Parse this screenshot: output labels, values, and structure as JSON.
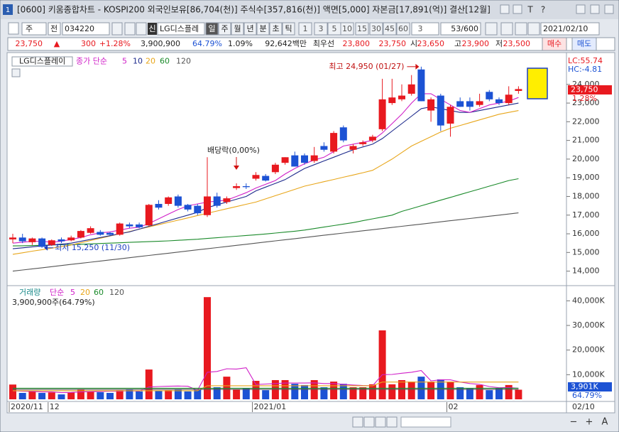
{
  "window": {
    "badge": "1",
    "title": "[0600] 키움종합차트 - KOSPI200 외국인보유[86,704(천)] 주식수[357,816(천)] 액면[5,000] 자본금[17,891(억)] 결산[12월]",
    "icons": [
      "T",
      "?"
    ]
  },
  "toolbar": {
    "market": "주",
    "range": "전",
    "code": "034220",
    "badge": "신",
    "name": "LG디스플레",
    "periods": [
      "일",
      "주",
      "월",
      "년",
      "분",
      "초",
      "틱"
    ],
    "intervals": [
      "1",
      "3",
      "5",
      "10",
      "15",
      "30",
      "45",
      "60"
    ],
    "multiplier": "3",
    "count": "53/600",
    "date": "2021/02/10"
  },
  "quote": {
    "price": "23,750",
    "arrow": "▲",
    "change": "300",
    "change_pct": "+1.28%",
    "volume": "3,900,900",
    "volume_ratio": "64.79%",
    "turnover": "1.09%",
    "amount": "92,642백만",
    "best_label": "최우선",
    "ask": "23,800",
    "bid": "23,750",
    "open_label": "시",
    "open": "23,650",
    "high_label": "고",
    "high": "23,900",
    "low_label": "저",
    "low": "23,500",
    "buy": "매수",
    "sell": "매도"
  },
  "scroll": {
    "minus": "−",
    "plus": "+",
    "auto": "A"
  },
  "chart_data": [
    {
      "type": "candlestick",
      "title": "LG디스플레이",
      "legend_prefix": "종가 단순",
      "up_color": "#e8191f",
      "down_color": "#1c52d4",
      "open": [
        15700,
        15800,
        15550,
        15750,
        15400,
        15700,
        15650,
        15800,
        16050,
        16100,
        16050,
        15950,
        16500,
        16500,
        16450,
        17600,
        17600,
        18000,
        17550,
        17500,
        17000,
        18000,
        17700,
        18450,
        18550,
        18950,
        19100,
        19300,
        19800,
        20200,
        20200,
        19900,
        20700,
        20400,
        21700,
        20500,
        20800,
        21000,
        21600,
        23000,
        23200,
        23500,
        24800,
        22600,
        23400,
        21900,
        23100,
        23100,
        22900,
        23600,
        23200,
        23000,
        23650
      ],
      "high": [
        16000,
        16000,
        15800,
        15800,
        15700,
        15800,
        15900,
        16200,
        16400,
        16200,
        16100,
        16600,
        16600,
        16600,
        17600,
        17800,
        18000,
        18100,
        17600,
        17600,
        20100,
        18200,
        18000,
        18700,
        18700,
        19300,
        19200,
        19800,
        20100,
        20400,
        20300,
        20650,
        20900,
        21500,
        21800,
        20800,
        21000,
        21300,
        24300,
        24300,
        24000,
        24500,
        24950,
        23300,
        23500,
        22900,
        23300,
        23300,
        23500,
        23700,
        23300,
        23900,
        23900
      ],
      "low": [
        15500,
        15500,
        15400,
        15250,
        15350,
        15500,
        15600,
        15750,
        16000,
        15900,
        15900,
        15900,
        16300,
        16300,
        16400,
        17300,
        17500,
        17400,
        17200,
        17000,
        16900,
        17400,
        17600,
        18350,
        18400,
        18850,
        18800,
        19200,
        19700,
        19600,
        19700,
        19800,
        20400,
        20300,
        20900,
        20300,
        20700,
        20900,
        21500,
        22900,
        23100,
        23400,
        23100,
        22000,
        21500,
        21200,
        22800,
        22600,
        22800,
        23100,
        22900,
        22900,
        23500
      ],
      "close": [
        15800,
        15600,
        15750,
        15300,
        15650,
        15600,
        15800,
        16150,
        16300,
        15950,
        15950,
        16550,
        16400,
        16350,
        17550,
        17400,
        17950,
        17500,
        17300,
        17100,
        18000,
        17500,
        17900,
        18550,
        18500,
        19150,
        18850,
        19700,
        20100,
        19600,
        19800,
        20200,
        20500,
        21400,
        21000,
        20700,
        20900,
        21200,
        23200,
        23300,
        23400,
        24000,
        23100,
        23200,
        21800,
        22800,
        22800,
        22800,
        23100,
        23200,
        23000,
        23450,
        23750
      ],
      "series": [
        {
          "name": "5",
          "color": "#d020c8",
          "values": [
            15500,
            15550,
            15600,
            15600,
            15550,
            15600,
            15700,
            15800,
            15950,
            16050,
            16100,
            16200,
            16300,
            16350,
            16550,
            16800,
            17050,
            17300,
            17500,
            17600,
            17700,
            17750,
            17800,
            18000,
            18200,
            18450,
            18650,
            18850,
            19200,
            19500,
            19750,
            19950,
            20100,
            20400,
            20700,
            20800,
            20900,
            21000,
            21400,
            21900,
            22400,
            23000,
            23500,
            23500,
            23200,
            22900,
            22600,
            22500,
            22700,
            22900,
            23000,
            23100,
            23300
          ]
        },
        {
          "name": "10",
          "color": "#1d2a8c",
          "values": [
            15200,
            15250,
            15300,
            15350,
            15400,
            15450,
            15500,
            15600,
            15700,
            15800,
            15900,
            16000,
            16100,
            16250,
            16400,
            16550,
            16700,
            16850,
            17000,
            17150,
            17400,
            17550,
            17700,
            17850,
            18000,
            18300,
            18500,
            18700,
            18900,
            19200,
            19500,
            19700,
            19900,
            20100,
            20300,
            20500,
            20650,
            20800,
            21100,
            21500,
            21900,
            22300,
            22700,
            22800,
            22700,
            22600,
            22500,
            22500,
            22600,
            22700,
            22800,
            22900,
            23000
          ]
        },
        {
          "name": "20",
          "color": "#e8a61a",
          "values": [
            14900,
            14980,
            15070,
            15150,
            15230,
            15320,
            15400,
            15520,
            15640,
            15760,
            15880,
            16000,
            16120,
            16250,
            16370,
            16490,
            16610,
            16730,
            16850,
            16980,
            17100,
            17220,
            17340,
            17460,
            17580,
            17700,
            17870,
            18040,
            18210,
            18380,
            18550,
            18670,
            18790,
            18910,
            19030,
            19150,
            19270,
            19400,
            19700,
            20000,
            20350,
            20700,
            20950,
            21200,
            21450,
            21650,
            21800,
            21950,
            22100,
            22250,
            22400,
            22500,
            22600
          ]
        },
        {
          "name": "60",
          "color": "#1a8a2a",
          "values": [
            15350,
            15360,
            15370,
            15380,
            15400,
            15410,
            15420,
            15440,
            15460,
            15480,
            15500,
            15520,
            15540,
            15560,
            15580,
            15600,
            15620,
            15650,
            15680,
            15710,
            15750,
            15790,
            15830,
            15870,
            15910,
            15950,
            15990,
            16040,
            16090,
            16140,
            16200,
            16280,
            16360,
            16440,
            16520,
            16600,
            16700,
            16800,
            16900,
            17000,
            17200,
            17350,
            17500,
            17650,
            17800,
            17950,
            18100,
            18250,
            18400,
            18550,
            18700,
            18850,
            18950
          ]
        },
        {
          "name": "120",
          "color": "#555555",
          "values": [
            14000,
            14060,
            14120,
            14180,
            14240,
            14300,
            14360,
            14420,
            14480,
            14540,
            14600,
            14660,
            14720,
            14780,
            14840,
            14900,
            14960,
            15020,
            15080,
            15140,
            15200,
            15260,
            15320,
            15380,
            15440,
            15500,
            15560,
            15620,
            15680,
            15740,
            15800,
            15860,
            15920,
            15980,
            16040,
            16100,
            16160,
            16220,
            16280,
            16340,
            16400,
            16460,
            16520,
            16580,
            16640,
            16700,
            16760,
            16820,
            16880,
            16940,
            17000,
            17060,
            17120
          ]
        }
      ],
      "ylim": [
        13300,
        25000
      ],
      "yticks": [
        {
          "value": 14000,
          "label": "14,000"
        },
        {
          "value": 15000,
          "label": "15,000"
        },
        {
          "value": 16000,
          "label": "16,000"
        },
        {
          "value": 17000,
          "label": "17,000"
        },
        {
          "value": 18000,
          "label": "18,000"
        },
        {
          "value": 19000,
          "label": "19,000"
        },
        {
          "value": 20000,
          "label": "20,000"
        },
        {
          "value": 21000,
          "label": "21,000"
        },
        {
          "value": 22000,
          "label": "22,000"
        },
        {
          "value": 23000,
          "label": "23,000"
        },
        {
          "value": 24000,
          "label": "24,000"
        }
      ],
      "high_label": "최고 24,950 (01/27)",
      "low_label": "최저 15,250 (11/30)",
      "dividend_label": "배당락(0,00%)",
      "lc": "LC:55.74",
      "hc": "HC:-4.81",
      "last_label": "23,750",
      "last_change": "1.28%"
    },
    {
      "type": "bar",
      "title": "거래량",
      "legend_prefix": "단순",
      "categories": [
        "2020/11",
        null,
        null,
        null,
        "12",
        null,
        null,
        null,
        null,
        null,
        null,
        null,
        null,
        null,
        null,
        null,
        null,
        null,
        null,
        null,
        null,
        null,
        null,
        null,
        null,
        "2021/01",
        null,
        null,
        null,
        null,
        null,
        null,
        null,
        null,
        null,
        null,
        null,
        null,
        null,
        null,
        null,
        null,
        null,
        null,
        null,
        "02",
        null,
        null,
        null,
        null,
        null,
        null,
        null
      ],
      "values": [
        6000,
        2600,
        3200,
        2600,
        2800,
        2000,
        2900,
        4000,
        3200,
        2900,
        2600,
        3700,
        4000,
        3200,
        12100,
        3500,
        3700,
        4000,
        3200,
        4000,
        41500,
        4900,
        9200,
        4000,
        4600,
        7500,
        3700,
        7800,
        7800,
        6300,
        5800,
        7800,
        4900,
        7200,
        6300,
        4900,
        4900,
        6100,
        28000,
        6100,
        7800,
        7200,
        9200,
        7200,
        8100,
        7200,
        4900,
        4600,
        5800,
        3700,
        4600,
        5800,
        3901
      ],
      "series": [
        {
          "name": "5",
          "color": "#d020c8",
          "values": [
            3500,
            3300,
            3200,
            3000,
            3000,
            2700,
            2800,
            3000,
            3100,
            3200,
            3300,
            3300,
            3500,
            3300,
            5000,
            5200,
            5300,
            5400,
            5300,
            3700,
            11000,
            11300,
            12400,
            12300,
            12800,
            6000,
            6200,
            6400,
            6600,
            6600,
            6600,
            6700,
            6400,
            6400,
            6100,
            5800,
            5600,
            5500,
            10000,
            10100,
            10600,
            11000,
            11700,
            7500,
            7900,
            7900,
            7000,
            6400,
            6100,
            5200,
            4700,
            4800,
            4500
          ]
        },
        {
          "name": "20",
          "color": "#e8a61a",
          "values": [
            3500,
            3500,
            3500,
            3500,
            3500,
            3500,
            3500,
            3500,
            3500,
            3500,
            3500,
            3500,
            3500,
            3500,
            3500,
            3500,
            3500,
            3500,
            3500,
            3500,
            5500,
            5500,
            5500,
            5500,
            5500,
            5500,
            5500,
            5500,
            5500,
            5500,
            5500,
            5500,
            5500,
            5500,
            5500,
            5500,
            5500,
            5500,
            7000,
            7000,
            7000,
            7000,
            7000,
            7000,
            7000,
            7000,
            7000,
            7000,
            7000,
            7000,
            7000,
            7000,
            7000
          ]
        },
        {
          "name": "60",
          "color": "#1a8a2a",
          "values": [
            4500,
            4500,
            4500,
            4500,
            4500,
            4500,
            4500,
            4500,
            4500,
            4500,
            4500,
            4500,
            4500,
            4500,
            4500,
            4500,
            4500,
            4500,
            4500,
            4500,
            4500,
            4500,
            4500,
            4500,
            4500,
            4500,
            4500,
            4500,
            4500,
            4500,
            4500,
            4500,
            4500,
            4500,
            4500,
            4500,
            4500,
            4500,
            4500,
            4500,
            4500,
            4500,
            4500,
            4500,
            4500,
            4500,
            4500,
            4500,
            4500,
            4500,
            4500,
            4500,
            4500
          ]
        },
        {
          "name": "120",
          "color": "#555555",
          "values": [
            4000,
            4000,
            4000,
            4000,
            4000,
            4000,
            4000,
            4000,
            4000,
            4000,
            4000,
            4000,
            4000,
            4000,
            4000,
            4000,
            4000,
            4000,
            4000,
            4000,
            4000,
            4000,
            4000,
            4000,
            4000,
            4000,
            4000,
            4000,
            4000,
            4000,
            4000,
            4000,
            4000,
            4000,
            4000,
            4000,
            4000,
            4000,
            4000,
            4000,
            4000,
            4000,
            4000,
            4000,
            4000,
            4000,
            4000,
            4000,
            4000,
            4000,
            4000,
            4000,
            4000
          ]
        }
      ],
      "ylim": [
        0,
        45300
      ],
      "yticks": [
        {
          "value": 10000,
          "label": "10,000K"
        },
        {
          "value": 20000,
          "label": "20,000K"
        },
        {
          "value": 30000,
          "label": "30,000K"
        },
        {
          "value": 40000,
          "label": "40,000K"
        }
      ],
      "volume_label": "3,900,900주(64.79%)",
      "last_label": "3,901K",
      "last_ratio": "64.79%",
      "cursor_label": "02/10"
    }
  ]
}
